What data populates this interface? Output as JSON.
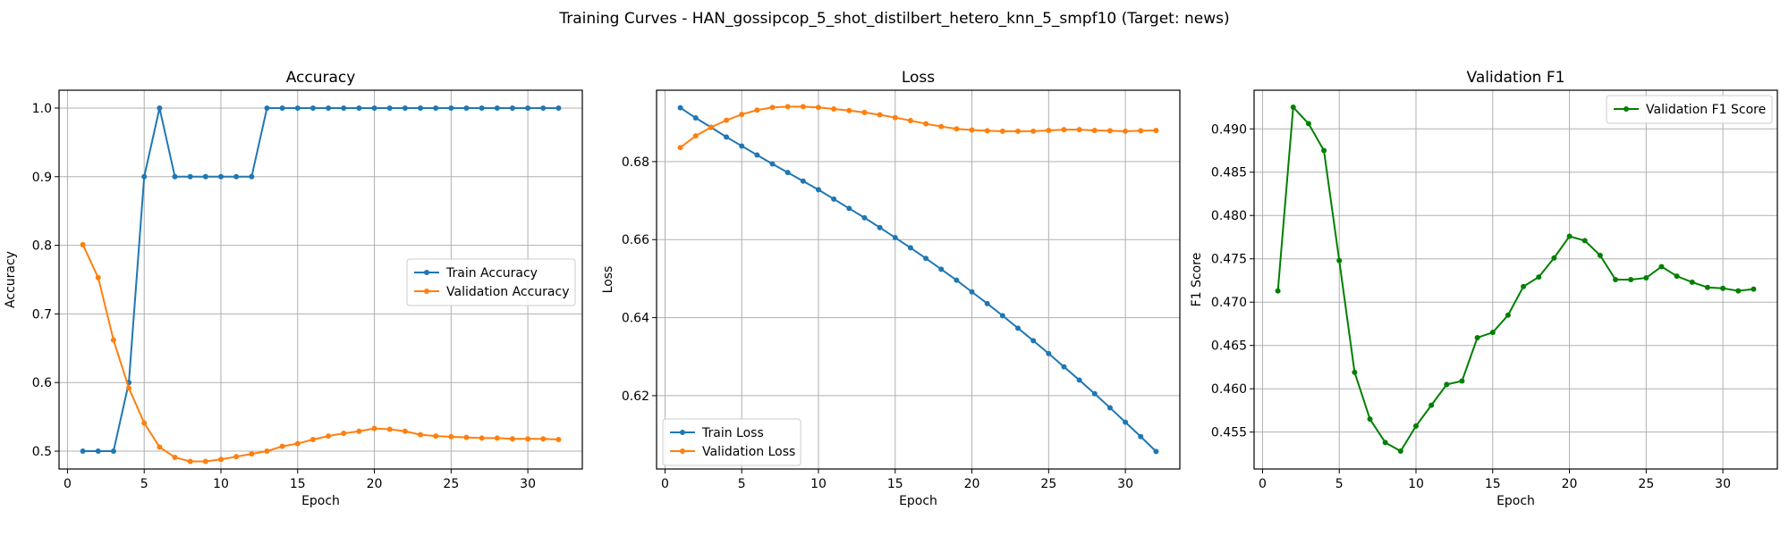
{
  "figure": {
    "suptitle": "Training Curves - HAN_gossipcop_5_shot_distilbert_hetero_knn_5_smpf10 (Target: news)"
  },
  "chart_data": [
    {
      "type": "line",
      "title": "Accuracy",
      "xlabel": "Epoch",
      "ylabel": "Accuracy",
      "xlim": [
        -0.55,
        33.55
      ],
      "ylim": [
        0.474,
        1.026
      ],
      "xticks": [
        0,
        5,
        10,
        15,
        20,
        25,
        30
      ],
      "yticks": [
        0.5,
        0.6,
        0.7,
        0.8,
        0.9,
        1.0
      ],
      "ytick_labels": [
        "0.5",
        "0.6",
        "0.7",
        "0.8",
        "0.9",
        "1.0"
      ],
      "grid": true,
      "legend": {
        "position": "center-right"
      },
      "x": [
        1,
        2,
        3,
        4,
        5,
        6,
        7,
        8,
        9,
        10,
        11,
        12,
        13,
        14,
        15,
        16,
        17,
        18,
        19,
        20,
        21,
        22,
        23,
        24,
        25,
        26,
        27,
        28,
        29,
        30,
        31,
        32
      ],
      "series": [
        {
          "name": "Train Accuracy",
          "color": "#1f77b4",
          "values": [
            0.5,
            0.5,
            0.5,
            0.6,
            0.9,
            1.0,
            0.9,
            0.9,
            0.9,
            0.9,
            0.9,
            0.9,
            1.0,
            1.0,
            1.0,
            1.0,
            1.0,
            1.0,
            1.0,
            1.0,
            1.0,
            1.0,
            1.0,
            1.0,
            1.0,
            1.0,
            1.0,
            1.0,
            1.0,
            1.0,
            1.0,
            1.0
          ]
        },
        {
          "name": "Validation Accuracy",
          "color": "#ff7f0e",
          "values": [
            0.801,
            0.753,
            0.662,
            0.592,
            0.541,
            0.506,
            0.491,
            0.485,
            0.485,
            0.488,
            0.492,
            0.496,
            0.5,
            0.507,
            0.511,
            0.517,
            0.522,
            0.526,
            0.529,
            0.533,
            0.532,
            0.529,
            0.524,
            0.522,
            0.521,
            0.52,
            0.519,
            0.519,
            0.518,
            0.518,
            0.518,
            0.517
          ]
        }
      ]
    },
    {
      "type": "line",
      "title": "Loss",
      "xlabel": "Epoch",
      "ylabel": "Loss",
      "xlim": [
        -0.55,
        33.55
      ],
      "ylim": [
        0.6012,
        0.6983
      ],
      "xticks": [
        0,
        5,
        10,
        15,
        20,
        25,
        30
      ],
      "yticks": [
        0.62,
        0.64,
        0.66,
        0.68
      ],
      "ytick_labels": [
        "0.62",
        "0.64",
        "0.66",
        "0.68"
      ],
      "grid": true,
      "legend": {
        "position": "lower-left"
      },
      "x": [
        1,
        2,
        3,
        4,
        5,
        6,
        7,
        8,
        9,
        10,
        11,
        12,
        13,
        14,
        15,
        16,
        17,
        18,
        19,
        20,
        21,
        22,
        23,
        24,
        25,
        26,
        27,
        28,
        29,
        30,
        31,
        32
      ],
      "series": [
        {
          "name": "Train Loss",
          "color": "#1f77b4",
          "values": [
            0.6938,
            0.6912,
            0.6888,
            0.6863,
            0.684,
            0.6817,
            0.6794,
            0.6772,
            0.675,
            0.6728,
            0.6704,
            0.668,
            0.6656,
            0.6631,
            0.6605,
            0.6579,
            0.6552,
            0.6524,
            0.6496,
            0.6466,
            0.6436,
            0.6405,
            0.6373,
            0.6341,
            0.6308,
            0.6274,
            0.624,
            0.6205,
            0.6169,
            0.6132,
            0.6095,
            0.6057
          ]
        },
        {
          "name": "Validation Loss",
          "color": "#ff7f0e",
          "values": [
            0.6836,
            0.6866,
            0.6888,
            0.6906,
            0.6921,
            0.6932,
            0.6939,
            0.6941,
            0.6941,
            0.6939,
            0.6935,
            0.6931,
            0.6926,
            0.692,
            0.6913,
            0.6905,
            0.6897,
            0.689,
            0.6884,
            0.6881,
            0.6879,
            0.6878,
            0.6878,
            0.6878,
            0.688,
            0.6882,
            0.6882,
            0.688,
            0.6879,
            0.6878,
            0.6879,
            0.688
          ]
        }
      ]
    },
    {
      "type": "line",
      "title": "Validation F1",
      "xlabel": "Epoch",
      "ylabel": "F1 Score",
      "xlim": [
        -0.55,
        33.55
      ],
      "ylim": [
        0.45074,
        0.49446
      ],
      "xticks": [
        0,
        5,
        10,
        15,
        20,
        25,
        30
      ],
      "yticks": [
        0.455,
        0.46,
        0.465,
        0.47,
        0.475,
        0.48,
        0.485,
        0.49
      ],
      "ytick_labels": [
        "0.455",
        "0.460",
        "0.465",
        "0.470",
        "0.475",
        "0.480",
        "0.485",
        "0.490"
      ],
      "grid": true,
      "legend": {
        "position": "top-right"
      },
      "x": [
        1,
        2,
        3,
        4,
        5,
        6,
        7,
        8,
        9,
        10,
        11,
        12,
        13,
        14,
        15,
        16,
        17,
        18,
        19,
        20,
        21,
        22,
        23,
        24,
        25,
        26,
        27,
        28,
        29,
        30,
        31,
        32
      ],
      "series": [
        {
          "name": "Validation F1 Score",
          "color": "#008000",
          "values": [
            0.4713,
            0.4925,
            0.4906,
            0.4875,
            0.4748,
            0.4619,
            0.4565,
            0.4538,
            0.4528,
            0.4557,
            0.4581,
            0.4605,
            0.4609,
            0.4659,
            0.4665,
            0.4685,
            0.4718,
            0.4729,
            0.4751,
            0.4776,
            0.4771,
            0.4754,
            0.4726,
            0.4726,
            0.4728,
            0.4741,
            0.473,
            0.4723,
            0.4717,
            0.4716,
            0.4713,
            0.4715
          ]
        }
      ]
    }
  ]
}
